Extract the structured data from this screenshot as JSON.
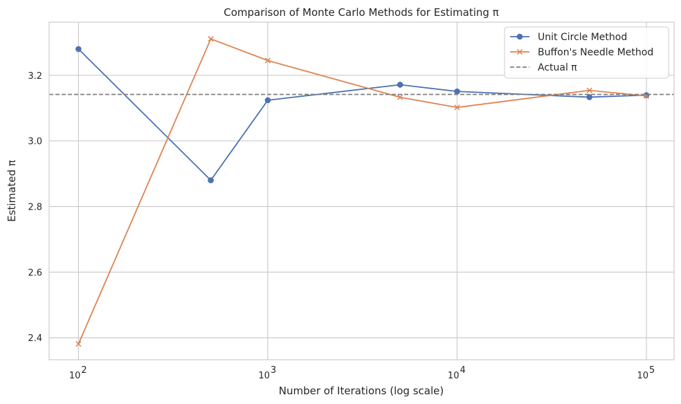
{
  "chart_data": {
    "type": "line",
    "title": "Comparison of Monte Carlo Methods for Estimating π",
    "xlabel": "Number of Iterations (log scale)",
    "ylabel": "Estimated π",
    "x_scale": "log",
    "x": [
      100,
      500,
      1000,
      5000,
      10000,
      50000,
      100000
    ],
    "x_ticks": [
      {
        "value": 100,
        "base": "10",
        "exp": "2"
      },
      {
        "value": 1000,
        "base": "10",
        "exp": "3"
      },
      {
        "value": 10000,
        "base": "10",
        "exp": "4"
      },
      {
        "value": 100000,
        "base": "10",
        "exp": "5"
      }
    ],
    "xlim": [
      70,
      140000
    ],
    "ylim": [
      2.333,
      3.362
    ],
    "y_ticks": [
      "2.4",
      "2.6",
      "2.8",
      "3.0",
      "3.2"
    ],
    "grid": true,
    "legend_position": "top-right",
    "series": [
      {
        "name": "Unit Circle Method",
        "color": "#4c72b0",
        "marker": "circle",
        "values": [
          3.28,
          2.88,
          3.124,
          3.1712,
          3.1508,
          3.13336,
          3.13948
        ]
      },
      {
        "name": "Buffon's Needle Method",
        "color": "#dd8452",
        "marker": "x",
        "values": [
          2.381,
          3.311,
          3.245,
          3.133,
          3.102,
          3.154,
          3.137
        ]
      }
    ],
    "reference_line": {
      "name": "Actual π",
      "value": 3.14159,
      "color": "#7f7f7f",
      "style": "dashed"
    }
  }
}
